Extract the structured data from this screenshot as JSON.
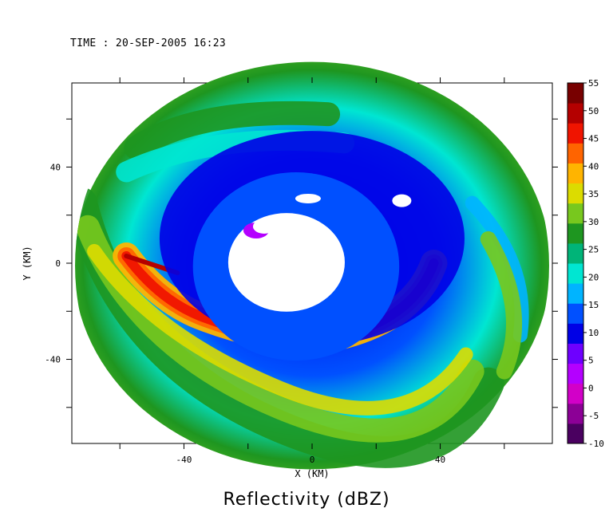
{
  "time_label": "TIME : 20-SEP-2005 16:23",
  "chart_data": {
    "type": "heatmap",
    "title": "Reflectivity (dBZ)",
    "xlabel": "X (KM)",
    "ylabel": "Y (KM)",
    "xlim": [
      -75,
      75
    ],
    "ylim": [
      -75,
      75
    ],
    "xticks": [
      -40,
      0,
      40
    ],
    "yticks": [
      -40,
      0,
      40
    ],
    "radar_range_km": 74,
    "colorbar": {
      "label_ticks": [
        "-10",
        "-5",
        "0",
        "5",
        "10",
        "15",
        "20",
        "25",
        "30",
        "35",
        "40",
        "45",
        "50",
        "55"
      ],
      "range": [
        -10,
        55
      ],
      "colors": [
        "#4a0060",
        "#8c0096",
        "#d200c8",
        "#b400ff",
        "#6e00ff",
        "#0000e6",
        "#0050ff",
        "#00b4ff",
        "#00e6d2",
        "#00b478",
        "#1e9620",
        "#78c81e",
        "#dcdc00",
        "#ffb400",
        "#ff6400",
        "#f01400",
        "#b40000",
        "#780000"
      ]
    },
    "features": {
      "eye_center_km": [
        -5,
        2
      ],
      "eye_radius_km": 28,
      "eyewall_band": "max ~50 dBZ arc from (-50,-5) sweeping south to (35,-10)",
      "outer_reflectivity": "20-35 dBZ",
      "inner_reflectivity": "5-15 dBZ"
    }
  }
}
